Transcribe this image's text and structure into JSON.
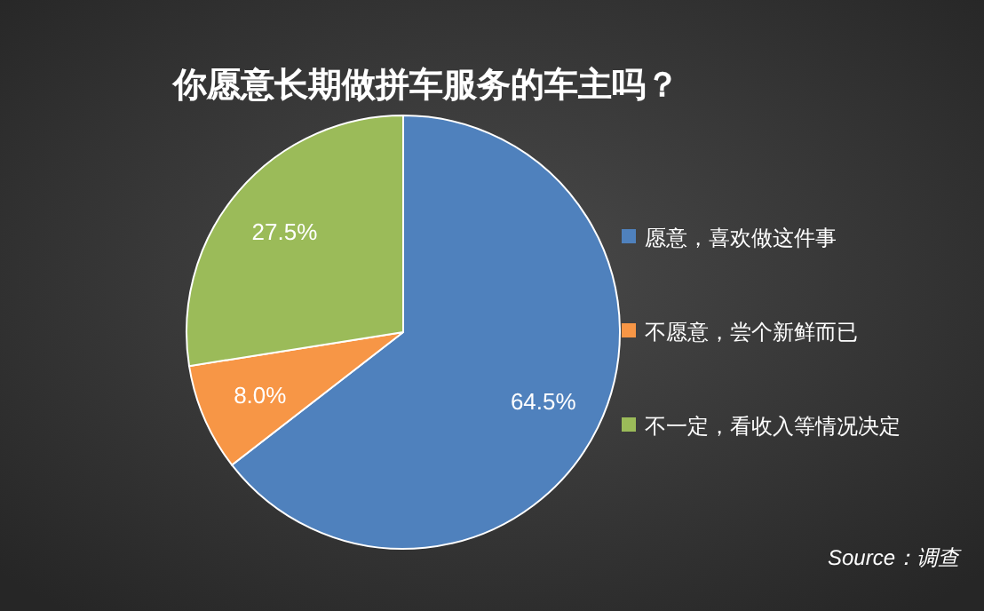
{
  "chart_data": {
    "type": "pie",
    "title": "你愿意长期做拼车服务的车主吗？",
    "categories": [
      "愿意，喜欢做这件事",
      "不愿意，尝个新鲜而已",
      "不一定，看收入等情况决定"
    ],
    "values": [
      64.5,
      8.0,
      27.5
    ],
    "colors": [
      "#4f81bd",
      "#f79646",
      "#9bbb59"
    ],
    "value_labels": [
      "64.5%",
      "8.0%",
      "27.5%"
    ],
    "legend": "right",
    "annotations": [
      "Source：调查"
    ]
  }
}
